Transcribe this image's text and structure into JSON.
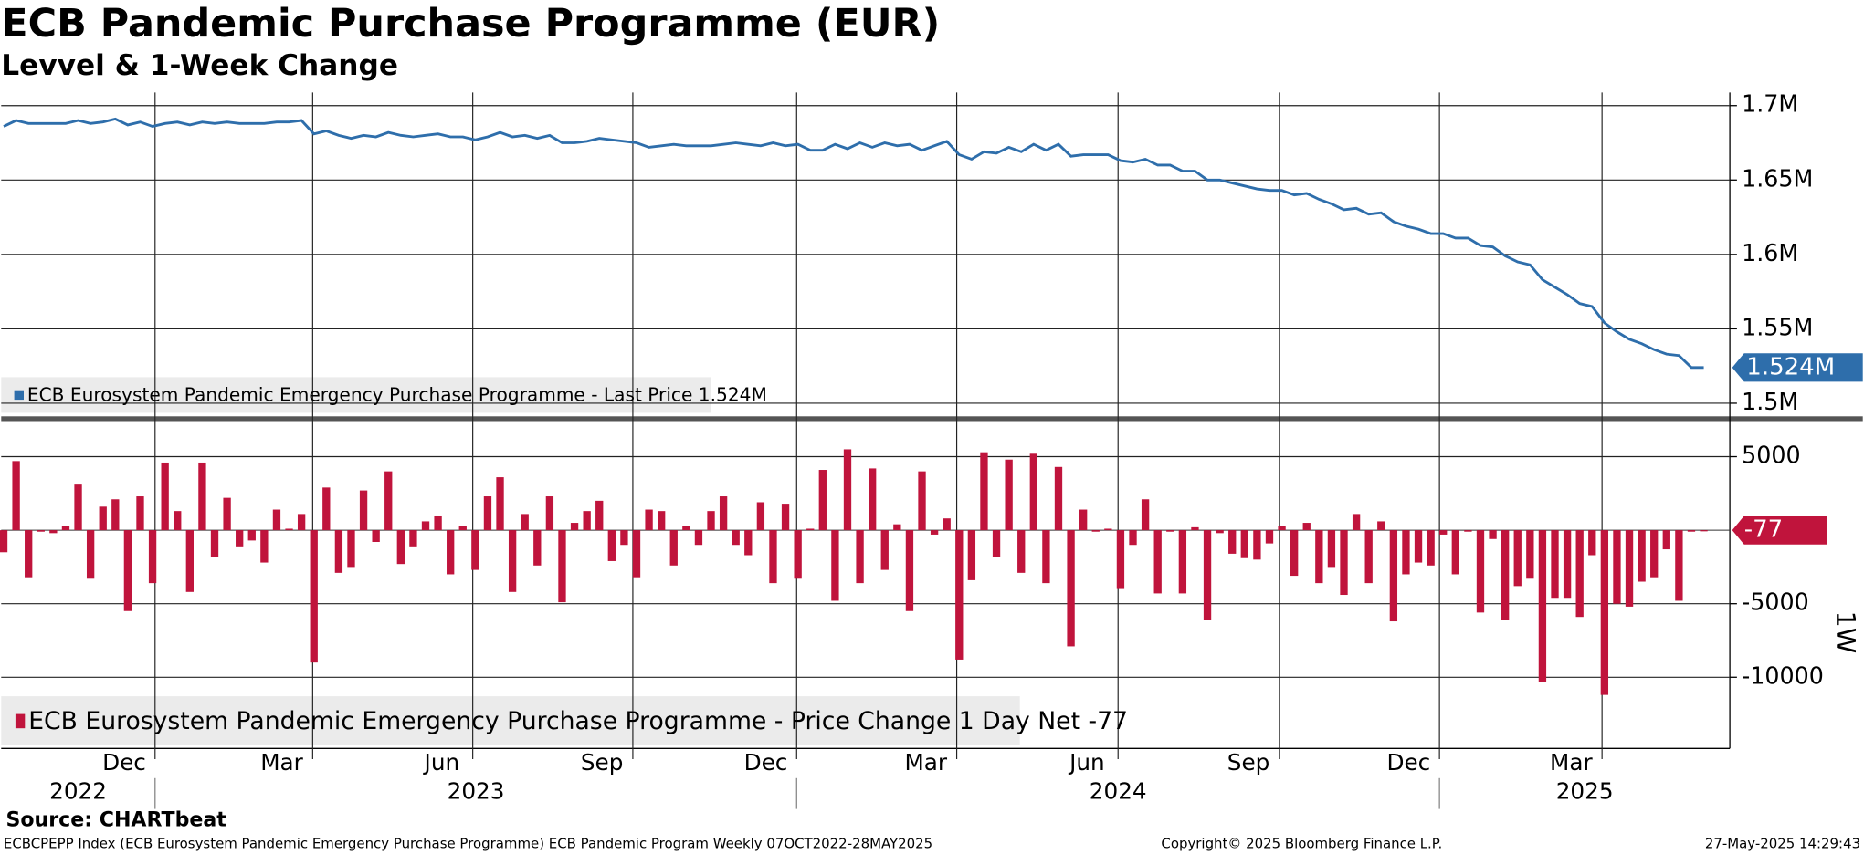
{
  "chart_data": [
    {
      "type": "line",
      "title": "ECB Pandemic Purchase Programme (EUR)",
      "subtitle": "Levvel & 1-Week Change",
      "xlim": [
        -0.2,
        139.1
      ],
      "xticks": [
        {
          "value": 12.2,
          "label": "Dec"
        },
        {
          "value": 24.9,
          "label": "Mar"
        },
        {
          "value": 37.8,
          "label": "Jun"
        },
        {
          "value": 50.7,
          "label": "Sep"
        },
        {
          "value": 63.9,
          "label": "Dec"
        },
        {
          "value": 76.8,
          "label": "Mar"
        },
        {
          "value": 89.8,
          "label": "Jun"
        },
        {
          "value": 102.8,
          "label": "Sep"
        },
        {
          "value": 115.7,
          "label": "Dec"
        },
        {
          "value": 128.8,
          "label": "Mar"
        }
      ],
      "years": [
        "2022",
        "2023",
        "2024",
        "2025"
      ],
      "year_breaks": [
        12.2,
        63.9,
        115.7
      ],
      "ylim": [
        1493600,
        1705600
      ],
      "yticks": [
        {
          "value": 1500000,
          "label": "1.5M"
        },
        {
          "value": 1550000,
          "label": "1.55M"
        },
        {
          "value": 1600000,
          "label": "1.6M"
        },
        {
          "value": 1650000,
          "label": "1.65M"
        },
        {
          "value": 1700000,
          "label": "1.7M"
        }
      ],
      "grid": true,
      "series": [
        {
          "name": "ECB Eurosystem Pandemic Emergency Purchase Programme - Last Price 1.524M",
          "color": "#2e6eab",
          "last_label": "1.524M",
          "values": [
            1686000,
            1690000,
            1688000,
            1688000,
            1688000,
            1688000,
            1690000,
            1688000,
            1689000,
            1691000,
            1687000,
            1689000,
            1686000,
            1688000,
            1689000,
            1687000,
            1689000,
            1688000,
            1689000,
            1688000,
            1688000,
            1688000,
            1689000,
            1689000,
            1690000,
            1681000,
            1683000,
            1680000,
            1678000,
            1680000,
            1679000,
            1682000,
            1680000,
            1679000,
            1680000,
            1681000,
            1679000,
            1679000,
            1677000,
            1679000,
            1682000,
            1679000,
            1680000,
            1678000,
            1680000,
            1675000,
            1675000,
            1676000,
            1678000,
            1677000,
            1676000,
            1675000,
            1672000,
            1673000,
            1674000,
            1673000,
            1673000,
            1673000,
            1674000,
            1675000,
            1674000,
            1673000,
            1675000,
            1673000,
            1674000,
            1670000,
            1670000,
            1674000,
            1671000,
            1675000,
            1672000,
            1675000,
            1673000,
            1674000,
            1670000,
            1673000,
            1676000,
            1667000,
            1664000,
            1669000,
            1668000,
            1672000,
            1669000,
            1674000,
            1670000,
            1674000,
            1666000,
            1667000,
            1667000,
            1667000,
            1663000,
            1662000,
            1664000,
            1660000,
            1660000,
            1656000,
            1656000,
            1650000,
            1650000,
            1648000,
            1646000,
            1644000,
            1643000,
            1643000,
            1640000,
            1641000,
            1637000,
            1634000,
            1630000,
            1631000,
            1627000,
            1628000,
            1622000,
            1619000,
            1617000,
            1614000,
            1614000,
            1611000,
            1611000,
            1606000,
            1605000,
            1599000,
            1595000,
            1593000,
            1583000,
            1578000,
            1573000,
            1567000,
            1565000,
            1554000,
            1548000,
            1543000,
            1540000,
            1536000,
            1533000,
            1532000,
            1524000,
            1524000
          ]
        }
      ]
    },
    {
      "type": "bar",
      "xlim": [
        -0.2,
        139.1
      ],
      "ylim": [
        -14760,
        7340
      ],
      "yticks": [
        -10000,
        -5000,
        5000
      ],
      "ylabel": "1W",
      "grid": true,
      "series": [
        {
          "name": "ECB Eurosystem Pandemic Emergency Purchase Programme - Price Change 1 Day Net -77",
          "color": "#c0143c",
          "last_label": "-77",
          "values": [
            -1500,
            4700,
            -3200,
            -100,
            -200,
            300,
            3100,
            -3300,
            1600,
            2100,
            -5500,
            2300,
            -3600,
            4600,
            1300,
            -4200,
            4600,
            -1800,
            2200,
            -1100,
            -700,
            -2200,
            1400,
            100,
            1100,
            -9000,
            2900,
            -2900,
            -2500,
            2700,
            -800,
            4000,
            -2300,
            -1100,
            600,
            1000,
            -3000,
            300,
            -2700,
            2300,
            3600,
            -4200,
            1100,
            -2400,
            2300,
            -4900,
            500,
            1300,
            2000,
            -2100,
            -1000,
            -3200,
            1400,
            1300,
            -2400,
            300,
            -1000,
            1300,
            2300,
            -1000,
            -1700,
            1900,
            -3600,
            1800,
            -3300,
            100,
            4100,
            -4800,
            5500,
            -3600,
            4200,
            -2700,
            400,
            -5500,
            4000,
            -300,
            800,
            -8800,
            -3400,
            5300,
            -1800,
            4800,
            -2900,
            5200,
            -3600,
            4300,
            -7900,
            1400,
            -100,
            100,
            -4000,
            -1000,
            2100,
            -4300,
            -100,
            -4300,
            200,
            -6100,
            -200,
            -1600,
            -1900,
            -2000,
            -900,
            300,
            -3100,
            500,
            -3600,
            -2500,
            -4400,
            1100,
            -3600,
            600,
            -6200,
            -3000,
            -2200,
            -2400,
            -300,
            -3000,
            -100,
            -5600,
            -600,
            -6100,
            -3800,
            -3300,
            -10300,
            -4600,
            -4600,
            -5900,
            -1700,
            -11200,
            -5000,
            -5200,
            -3500,
            -3200,
            -1300,
            -4800,
            -100,
            -77
          ]
        }
      ]
    }
  ],
  "footer": {
    "source": "Source: CHARTbeat",
    "description": "ECBCPEPP Index (ECB Eurosystem Pandemic Emergency Purchase Programme) ECB Pandemic Program  Weekly 07OCT2022-28MAY2025",
    "copyright": "Copyright© 2025 Bloomberg Finance L.P.",
    "timestamp": "27-May-2025 14:29:43"
  }
}
